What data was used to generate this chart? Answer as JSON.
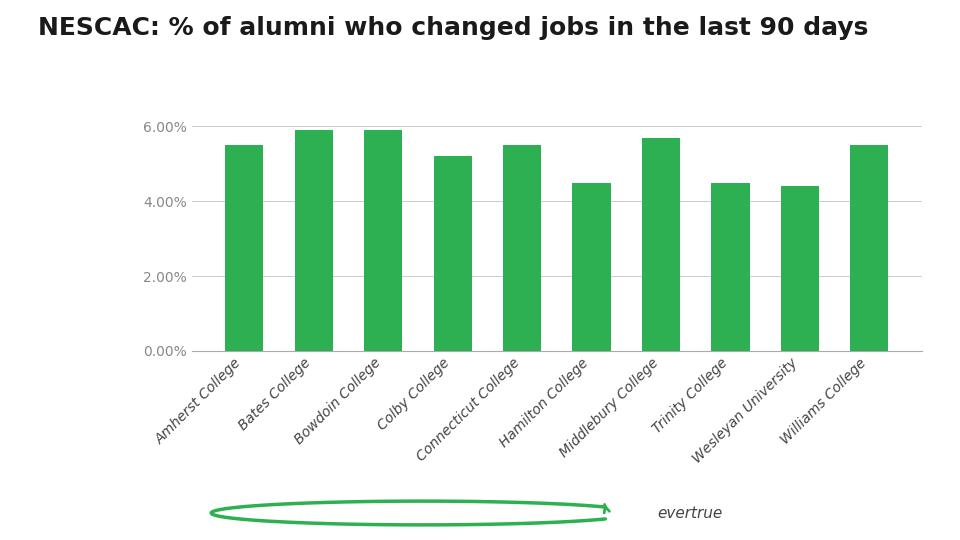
{
  "title": "NESCAC: % of alumni who changed jobs in the last 90 days",
  "categories": [
    "Amherst College",
    "Bates College",
    "Bowdoin College",
    "Colby College",
    "Connecticut College",
    "Hamilton College",
    "Middlebury College",
    "Trinity College",
    "Wesleyan University",
    "Williams College"
  ],
  "values": [
    0.055,
    0.059,
    0.059,
    0.052,
    0.055,
    0.045,
    0.057,
    0.045,
    0.044,
    0.055
  ],
  "bar_color": "#2db052",
  "background_color": "#ffffff",
  "footer_bg": "#e8e8e8",
  "ylim": [
    0,
    0.075
  ],
  "yticks": [
    0.0,
    0.02,
    0.04,
    0.06
  ],
  "ytick_labels": [
    "0.00%",
    "2.00%",
    "4.00%",
    "6.00%"
  ],
  "title_fontsize": 18,
  "tick_fontsize": 10,
  "grid_color": "#cccccc",
  "axis_color": "#aaaaaa",
  "label_color": "#444444",
  "ytick_color": "#888888"
}
